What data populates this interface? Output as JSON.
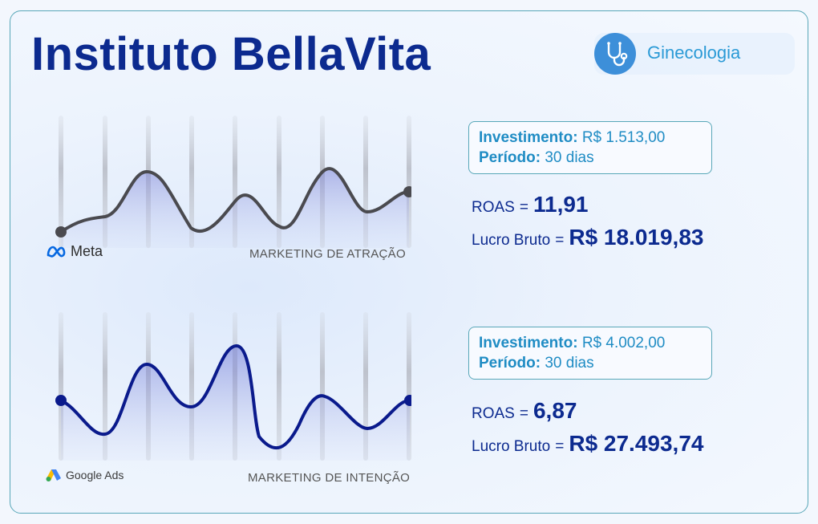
{
  "header": {
    "title": "Instituto BellaVita",
    "specialty": "Ginecologia",
    "specialty_icon": "stethoscope-icon"
  },
  "sections": [
    {
      "platform": "Meta",
      "platform_icon": "meta-logo-icon",
      "channel_label": "MARKETING DE ATRAÇÃO",
      "line_color": "#4a4a4f",
      "investment_label": "Investimento:",
      "investment_value": "R$ 1.513,00",
      "period_label": "Período:",
      "period_value": "30 dias",
      "roas_label": "ROAS",
      "roas_value": "11,91",
      "profit_label": "Lucro Bruto",
      "profit_value": "R$ 18.019,83"
    },
    {
      "platform": "Google Ads",
      "platform_icon": "google-ads-logo-icon",
      "channel_label": "MARKETING DE INTENÇÃO",
      "line_color": "#0a1a8c",
      "investment_label": "Investimento:",
      "investment_value": "R$ 4.002,00",
      "period_label": "Período:",
      "period_value": "30 dias",
      "roas_label": "ROAS",
      "roas_value": "6,87",
      "profit_label": "Lucro Bruto",
      "profit_value": "R$ 27.493,74"
    }
  ],
  "colors": {
    "brand_dark": "#0c2a8f",
    "accent": "#1f8cc4",
    "border": "#58a7b8"
  }
}
